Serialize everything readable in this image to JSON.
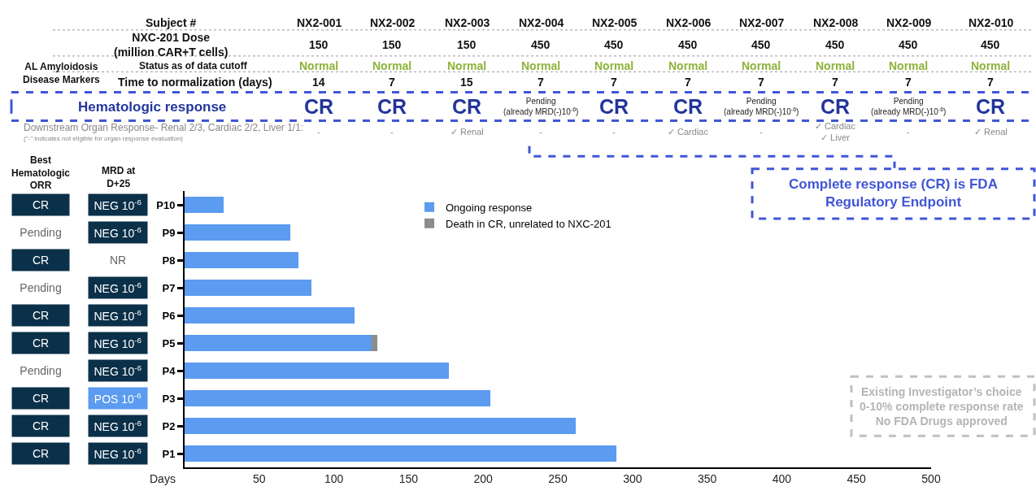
{
  "chart_data": {
    "type": "bar",
    "orientation": "horizontal",
    "stacked": true,
    "categories": [
      "P10",
      "P9",
      "P8",
      "P7",
      "P6",
      "P5",
      "P4",
      "P3",
      "P2",
      "P1"
    ],
    "series": [
      {
        "name": "Ongoing response",
        "color": "#5b9bf0",
        "values": [
          26,
          71,
          76,
          85,
          114,
          125,
          177,
          205,
          262,
          289
        ]
      },
      {
        "name": "Death in CR, unrelated to NXC-201",
        "color": "#8c8c8c",
        "values": [
          null,
          null,
          null,
          null,
          null,
          4,
          null,
          null,
          null,
          null
        ]
      }
    ],
    "xlim": [
      0,
      500
    ],
    "xticks": [
      50,
      100,
      150,
      200,
      250,
      300,
      350,
      400,
      450,
      500
    ],
    "xlabel": "Days",
    "legend": "top",
    "annotations": [
      "Subject #",
      "NX2-001",
      "NX2-002",
      "NX2-003",
      "NX2-004",
      "NX2-005",
      "NX2-006",
      "NX2-007",
      "NX2-008",
      "NX2-009",
      "NX2-010",
      "NXC-201 Dose\n(million CAR+T cells)",
      "150",
      "150",
      "150",
      "450",
      "450",
      "450",
      "450",
      "450",
      "450",
      "450",
      "AL Amyloidosis\nDisease Markers",
      "Status as of data cutoff",
      "Normal",
      "Normal",
      "Normal",
      "Normal",
      "Normal",
      "Normal",
      "Normal",
      "Normal",
      "Normal",
      "Normal",
      "Time to normalization (days)",
      "14",
      "7",
      "15",
      "7",
      "7",
      "7",
      "7",
      "7",
      "7",
      "7",
      "Hematologic response",
      "CR",
      "CR",
      "CR",
      "Pending\n(already MRD(-)10$^{-6}$)",
      "CR",
      "CR",
      "Pending\n(already MRD(-)10$^{-6}$)",
      "CR",
      "Pending\n(already MRD(-)10$^{-6}$)",
      "CR",
      "Downstream Organ Response- Renal 2/3, Cardiac 2/2, Liver 1/1:",
      "(\"-\" indicates not eligible for organ response evaluation)",
      "-",
      "-",
      "✓ Renal",
      "-",
      "-",
      "✓ Cardiac",
      "-",
      "✓ Cardiac\n✓ Liver",
      "-",
      "✓ Renal",
      "Best\nHematologic\nORR",
      "MRD at\nD+25",
      "CR",
      "Pending",
      "CR",
      "Pending",
      "CR",
      "CR",
      "Pending",
      "CR",
      "CR",
      "CR",
      "NEG 10$^{-6}$",
      "NEG 10$^{-6}$",
      "NR",
      "NEG 10$^{-6}$",
      "NEG 10$^{-6}$",
      "NEG 10$^{-6}$",
      "NEG 10$^{-6}$",
      "POS 10$^{-6}$",
      "NEG 10$^{-6}$",
      "NEG 10$^{-6}$",
      "Complete response (CR) is FDA\nRegulatory Endpoint",
      "Existing Investigator’s choice\n0-10% complete response rate\nNo FDA Drugs approved"
    ]
  }
}
